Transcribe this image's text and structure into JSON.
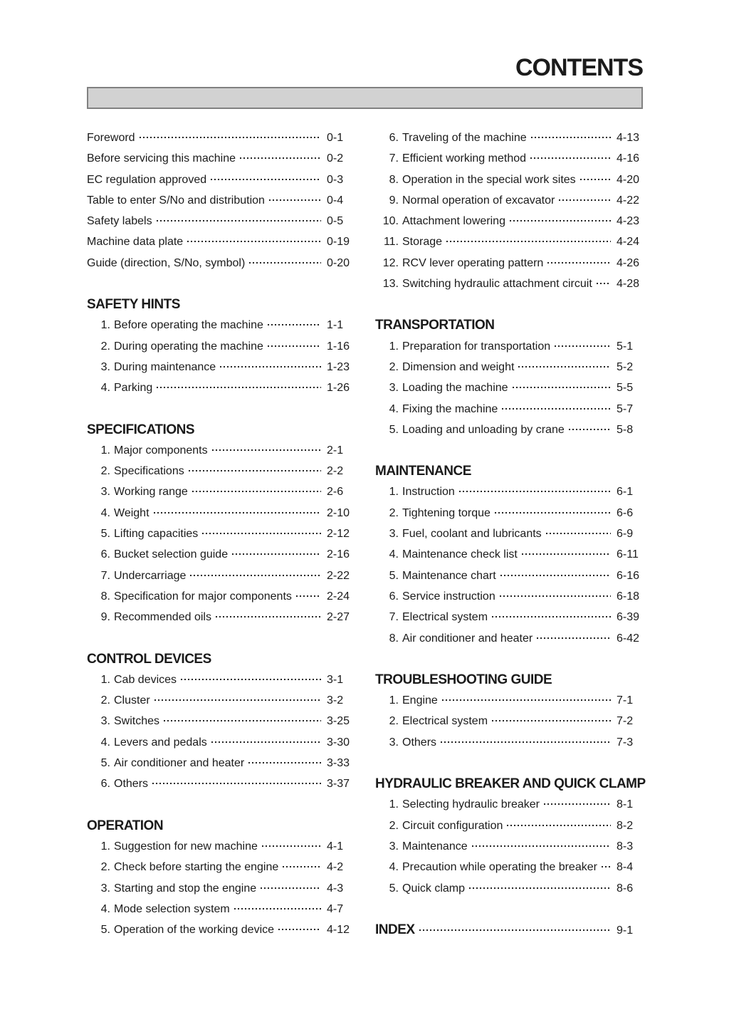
{
  "page_title": "CONTENTS",
  "toc": {
    "columns": [
      {
        "side": "left",
        "sections": [
          {
            "heading": "",
            "items": [
              {
                "num": "",
                "label": "Foreword",
                "page": "0-1"
              },
              {
                "num": "",
                "label": "Before servicing this machine",
                "page": "0-2"
              },
              {
                "num": "",
                "label": "EC regulation approved",
                "page": "0-3"
              },
              {
                "num": "",
                "label": "Table to enter S/No and distribution",
                "page": "0-4"
              },
              {
                "num": "",
                "label": "Safety labels",
                "page": "0-5"
              },
              {
                "num": "",
                "label": "Machine data plate",
                "page": "0-19"
              },
              {
                "num": "",
                "label": "Guide (direction, S/No, symbol)",
                "page": "0-20"
              }
            ]
          },
          {
            "heading": "SAFETY HINTS",
            "items": [
              {
                "num": "1.",
                "label": "Before operating the machine",
                "page": "1-1"
              },
              {
                "num": "2.",
                "label": "During operating the machine",
                "page": "1-16"
              },
              {
                "num": "3.",
                "label": "During maintenance",
                "page": "1-23"
              },
              {
                "num": "4.",
                "label": "Parking",
                "page": "1-26"
              }
            ]
          },
          {
            "heading": "SPECIFICATIONS",
            "items": [
              {
                "num": "1.",
                "label": "Major components",
                "page": "2-1"
              },
              {
                "num": "2.",
                "label": "Specifications",
                "page": "2-2"
              },
              {
                "num": "3.",
                "label": "Working range",
                "page": "2-6"
              },
              {
                "num": "4.",
                "label": "Weight",
                "page": "2-10"
              },
              {
                "num": "5.",
                "label": "Lifting capacities",
                "page": "2-12"
              },
              {
                "num": "6.",
                "label": "Bucket selection guide",
                "page": "2-16"
              },
              {
                "num": "7.",
                "label": "Undercarriage",
                "page": "2-22"
              },
              {
                "num": "8.",
                "label": "Specification for major components",
                "page": "2-24"
              },
              {
                "num": "9.",
                "label": "Recommended oils",
                "page": "2-27"
              }
            ]
          },
          {
            "heading": "CONTROL DEVICES",
            "items": [
              {
                "num": "1.",
                "label": "Cab devices",
                "page": "3-1"
              },
              {
                "num": "2.",
                "label": "Cluster",
                "page": "3-2"
              },
              {
                "num": "3.",
                "label": "Switches",
                "page": "3-25"
              },
              {
                "num": "4.",
                "label": "Levers and pedals",
                "page": "3-30"
              },
              {
                "num": "5.",
                "label": "Air conditioner and heater",
                "page": "3-33"
              },
              {
                "num": "6.",
                "label": "Others",
                "page": "3-37"
              }
            ]
          },
          {
            "heading": "OPERATION",
            "items": [
              {
                "num": "1.",
                "label": "Suggestion for new machine",
                "page": "4-1"
              },
              {
                "num": "2.",
                "label": "Check before starting the engine",
                "page": "4-2"
              },
              {
                "num": "3.",
                "label": "Starting and stop the engine",
                "page": "4-3"
              },
              {
                "num": "4.",
                "label": "Mode selection system",
                "page": "4-7"
              },
              {
                "num": "5.",
                "label": "Operation of the working device",
                "page": "4-12"
              }
            ]
          }
        ]
      },
      {
        "side": "right",
        "sections": [
          {
            "heading": "",
            "items": [
              {
                "num": "6.",
                "label": "Traveling of the machine",
                "page": "4-13"
              },
              {
                "num": "7.",
                "label": "Efficient working method",
                "page": "4-16"
              },
              {
                "num": "8.",
                "label": "Operation in the special work sites",
                "page": "4-20"
              },
              {
                "num": "9.",
                "label": "Normal operation of excavator",
                "page": "4-22"
              },
              {
                "num": "10.",
                "label": "Attachment lowering",
                "page": "4-23"
              },
              {
                "num": "11.",
                "label": "Storage",
                "page": "4-24"
              },
              {
                "num": "12.",
                "label": "RCV lever operating pattern",
                "page": "4-26"
              },
              {
                "num": "13.",
                "label": "Switching hydraulic attachment circuit",
                "page": "4-28"
              }
            ]
          },
          {
            "heading": "TRANSPORTATION",
            "items": [
              {
                "num": "1.",
                "label": "Preparation for transportation",
                "page": "5-1"
              },
              {
                "num": "2.",
                "label": "Dimension and weight",
                "page": "5-2"
              },
              {
                "num": "3.",
                "label": "Loading the machine",
                "page": "5-5"
              },
              {
                "num": "4.",
                "label": "Fixing the machine",
                "page": "5-7"
              },
              {
                "num": "5.",
                "label": "Loading and unloading by crane",
                "page": "5-8"
              }
            ]
          },
          {
            "heading": "MAINTENANCE",
            "items": [
              {
                "num": "1.",
                "label": "Instruction",
                "page": "6-1"
              },
              {
                "num": "2.",
                "label": "Tightening torque",
                "page": "6-6"
              },
              {
                "num": "3.",
                "label": "Fuel, coolant and lubricants",
                "page": "6-9"
              },
              {
                "num": "4.",
                "label": "Maintenance check list",
                "page": "6-11"
              },
              {
                "num": "5.",
                "label": "Maintenance chart",
                "page": "6-16"
              },
              {
                "num": "6.",
                "label": "Service instruction",
                "page": "6-18"
              },
              {
                "num": "7.",
                "label": "Electrical system",
                "page": "6-39"
              },
              {
                "num": "8.",
                "label": "Air conditioner and heater",
                "page": "6-42"
              }
            ]
          },
          {
            "heading": "TROUBLESHOOTING GUIDE",
            "items": [
              {
                "num": "1.",
                "label": "Engine",
                "page": "7-1"
              },
              {
                "num": "2.",
                "label": "Electrical system",
                "page": "7-2"
              },
              {
                "num": "3.",
                "label": "Others",
                "page": "7-3"
              }
            ]
          },
          {
            "heading": "HYDRAULIC BREAKER AND QUICK CLAMP",
            "items": [
              {
                "num": "1.",
                "label": "Selecting hydraulic breaker",
                "page": "8-1"
              },
              {
                "num": "2.",
                "label": "Circuit configuration",
                "page": "8-2"
              },
              {
                "num": "3.",
                "label": "Maintenance",
                "page": "8-3"
              },
              {
                "num": "4.",
                "label": "Precaution while operating the breaker",
                "page": "8-4"
              },
              {
                "num": "5.",
                "label": "Quick clamp",
                "page": "8-6"
              }
            ]
          },
          {
            "heading": "INDEX",
            "heading_page": "9-1",
            "items": []
          }
        ]
      }
    ]
  }
}
